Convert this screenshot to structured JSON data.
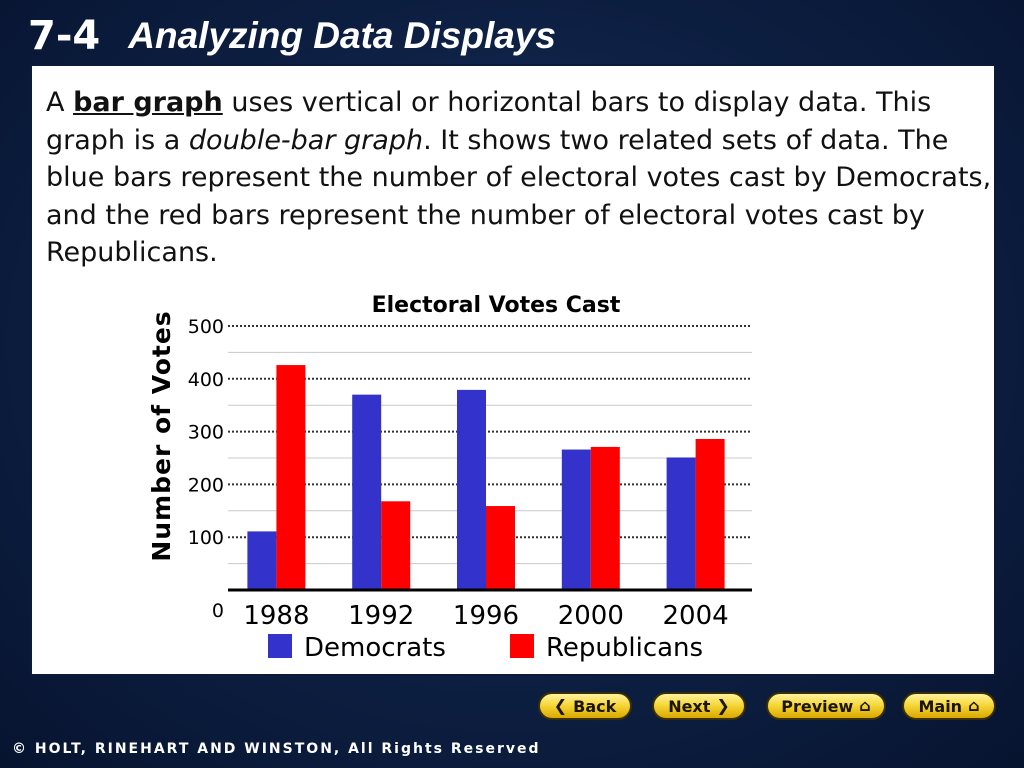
{
  "slide": {
    "section_number": "7-4",
    "title": "Analyzing Data Displays"
  },
  "intro": {
    "lead": "A ",
    "term": "bar graph",
    "sentence1_rest": " uses vertical or horizontal bars to display data.",
    "sentence2_lead": " This graph is a ",
    "sentence2_em": "double-bar graph",
    "sentence2_rest": ". It shows two related sets of data. The blue bars represent the number of electoral votes cast by Democrats, and the red bars represent the number of electoral votes cast by Republicans."
  },
  "chart_data": {
    "type": "bar",
    "title": "Electoral Votes Cast",
    "xlabel": "",
    "ylabel": "Number of Votes",
    "categories": [
      "1988",
      "1992",
      "1996",
      "2000",
      "2004"
    ],
    "series": [
      {
        "name": "Democrats",
        "color": "#3333cc",
        "values": [
          111,
          370,
          379,
          266,
          251
        ]
      },
      {
        "name": "Republicans",
        "color": "#ff0000",
        "values": [
          426,
          168,
          159,
          271,
          286
        ]
      }
    ],
    "ylim": [
      0,
      500
    ],
    "yticks": [
      "0",
      "100",
      "200",
      "300",
      "400",
      "500"
    ],
    "grid": true,
    "legend_position": "bottom"
  },
  "nav": {
    "back_label": "Back",
    "next_label": "Next",
    "preview_label": "Preview",
    "main_label": "Main",
    "button_color": "#f6d83a"
  },
  "footer": {
    "copyright": "© HOLT, RINEHART AND WINSTON, All Rights Reserved"
  }
}
